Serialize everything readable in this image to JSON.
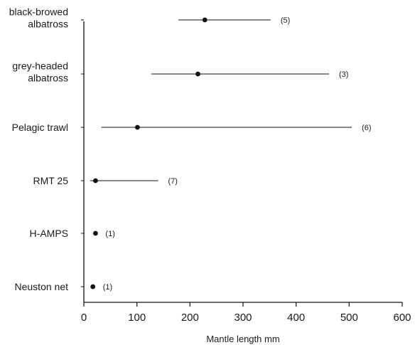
{
  "chart_data": {
    "type": "scatter",
    "title": "",
    "xlabel": "Mantle length mm",
    "ylabel": "",
    "xlim": [
      0,
      600
    ],
    "xticks": [
      "0",
      "100",
      "200",
      "300",
      "400",
      "500",
      "600"
    ],
    "grid": false,
    "rows": [
      {
        "name": "black-browed\nalbatross",
        "lines": [
          "black-browed",
          "albatross"
        ],
        "value": 228,
        "low": 178,
        "high": 352,
        "n_label": "(5)"
      },
      {
        "name": "grey-headed\nalbatross",
        "lines": [
          "grey-headed",
          "albatross"
        ],
        "value": 215,
        "low": 127,
        "high": 462,
        "n_label": "(3)"
      },
      {
        "name": "Pelagic trawl",
        "lines": [
          "Pelagic trawl"
        ],
        "value": 101,
        "low": 33,
        "high": 505,
        "n_label": "(6)"
      },
      {
        "name": "RMT 25",
        "lines": [
          "RMT 25"
        ],
        "value": 22,
        "low": 12,
        "high": 140,
        "n_label": "(7)"
      },
      {
        "name": "H-AMPS",
        "lines": [
          "H-AMPS"
        ],
        "value": 22,
        "low": null,
        "high": null,
        "n_label": "(1)"
      },
      {
        "name": "Neuston net",
        "lines": [
          "Neuston net"
        ],
        "value": 17,
        "low": null,
        "high": null,
        "n_label": "(1)"
      }
    ]
  }
}
